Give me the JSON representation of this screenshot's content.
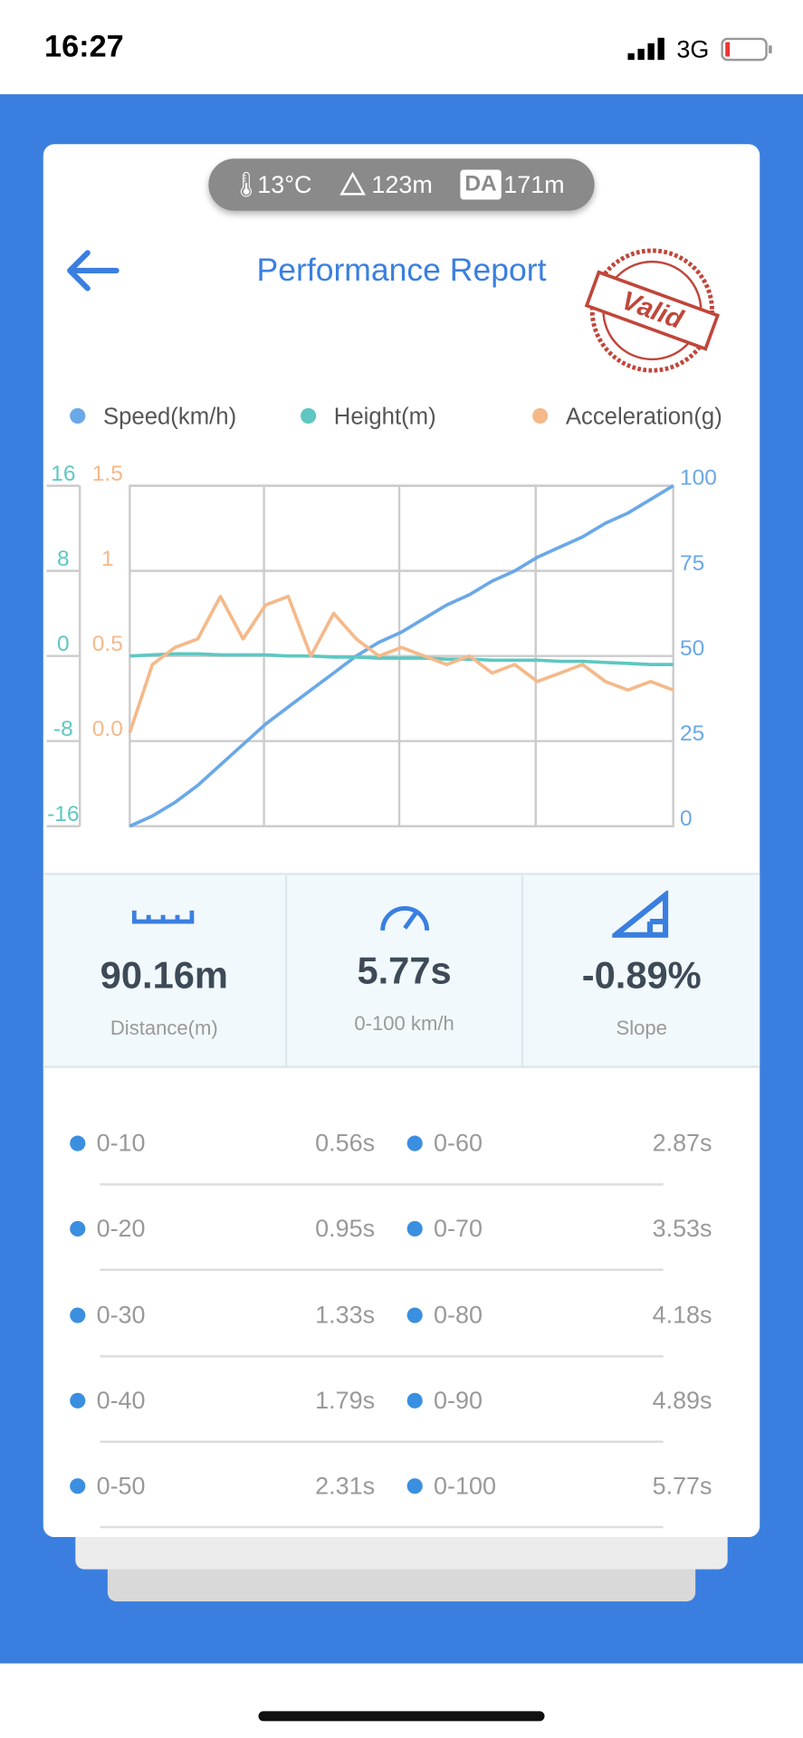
{
  "status_bar": {
    "time": "16:27",
    "network": "3G"
  },
  "conditions": {
    "temperature": "13°C",
    "altitude": "123m",
    "da_badge": "DA",
    "density_altitude": "171m"
  },
  "header": {
    "title": "Performance Report",
    "stamp": "Valid"
  },
  "chart_data": {
    "type": "line",
    "series": [
      {
        "name": "Speed(km/h)",
        "color": "#6aa8e8",
        "axis": "y2",
        "values": [
          0,
          3,
          7,
          12,
          18,
          24,
          30,
          35,
          40,
          45,
          50,
          54,
          57,
          61,
          65,
          68,
          72,
          75,
          79,
          82,
          85,
          89,
          92,
          96,
          100
        ]
      },
      {
        "name": "Height(m)",
        "color": "#5ec7c2",
        "axis": "y",
        "values": [
          0,
          0.1,
          0.2,
          0.2,
          0.1,
          0.1,
          0.1,
          0,
          0,
          -0.1,
          -0.1,
          -0.2,
          -0.2,
          -0.2,
          -0.3,
          -0.3,
          -0.4,
          -0.4,
          -0.4,
          -0.5,
          -0.5,
          -0.6,
          -0.7,
          -0.8,
          -0.8
        ]
      },
      {
        "name": "Acceleration(g)",
        "color": "#f5b98a",
        "axis": "y3",
        "values": [
          0.05,
          0.45,
          0.55,
          0.6,
          0.85,
          0.6,
          0.8,
          0.85,
          0.5,
          0.75,
          0.6,
          0.5,
          0.55,
          0.5,
          0.45,
          0.5,
          0.4,
          0.45,
          0.35,
          0.4,
          0.45,
          0.35,
          0.3,
          0.35,
          0.3
        ]
      }
    ],
    "ylim": [
      -16,
      16
    ],
    "yticks": [
      16,
      8,
      0,
      -8,
      -16
    ],
    "y3lim": [
      -0.5,
      1.5
    ],
    "y3ticks": [
      1.5,
      1,
      0.5,
      {
        "value": 0,
        "label": "0.0"
      }
    ],
    "y2lim": [
      0,
      100
    ],
    "y2ticks": [
      100,
      75,
      50,
      25,
      0
    ],
    "grid": true
  },
  "stats": [
    {
      "value": "90.16m",
      "label": "Distance(m)"
    },
    {
      "value": "5.77s",
      "label": "0-100 km/h"
    },
    {
      "value": "-0.89%",
      "label": "Slope"
    }
  ],
  "splits": [
    {
      "range": "0-10",
      "time": "0.56s"
    },
    {
      "range": "0-20",
      "time": "0.95s"
    },
    {
      "range": "0-30",
      "time": "1.33s"
    },
    {
      "range": "0-40",
      "time": "1.79s"
    },
    {
      "range": "0-50",
      "time": "2.31s"
    },
    {
      "range": "0-60",
      "time": "2.87s"
    },
    {
      "range": "0-70",
      "time": "3.53s"
    },
    {
      "range": "0-80",
      "time": "4.18s"
    },
    {
      "range": "0-90",
      "time": "4.89s"
    },
    {
      "range": "0-100",
      "time": "5.77s"
    }
  ]
}
